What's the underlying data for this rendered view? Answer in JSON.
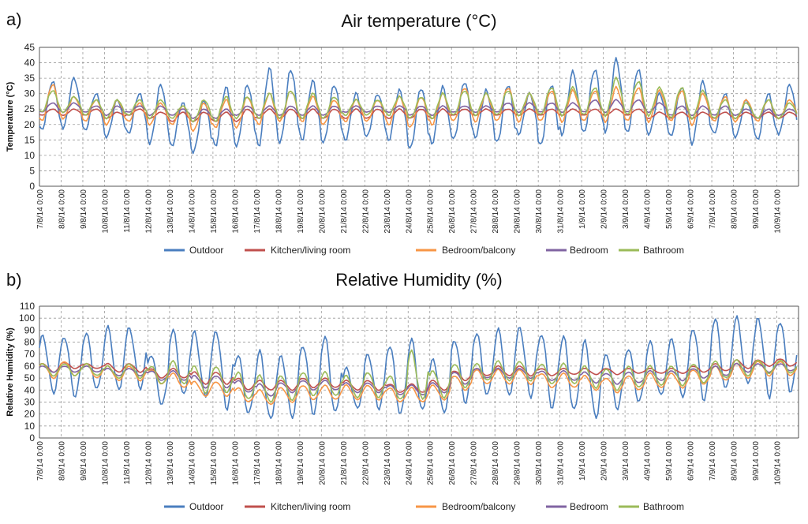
{
  "chart_data": [
    {
      "type": "line",
      "panel_label": "a)",
      "title": "Air temperature (°C)",
      "ylabel": "Temperature (°C)",
      "xlabel": "",
      "ylim": [
        0,
        45
      ],
      "yticks": [
        0,
        5,
        10,
        15,
        20,
        25,
        30,
        35,
        40,
        45
      ],
      "grid": true,
      "legend": "bottom",
      "categories": [
        "7/8/14 0:00",
        "8/8/14 0:00",
        "9/8/14 0:00",
        "10/8/14 0:00",
        "11/8/14 0:00",
        "12/8/14 0:00",
        "13/8/14 0:00",
        "14/8/14 0:00",
        "15/8/14 0:00",
        "16/8/14 0:00",
        "17/8/14 0:00",
        "18/8/14 0:00",
        "19/8/14 0:00",
        "20/8/14 0:00",
        "21/8/14 0:00",
        "22/8/14 0:00",
        "23/8/14 0:00",
        "24/8/14 0:00",
        "25/8/14 0:00",
        "26/8/14 0:00",
        "27/8/14 0:00",
        "28/8/14 0:00",
        "29/8/14 0:00",
        "30/8/14 0:00",
        "31/8/14 0:00",
        "1/9/14 0:00",
        "2/9/14 0:00",
        "3/9/14 0:00",
        "4/9/14 0:00",
        "5/9/14 0:00",
        "6/9/14 0:00",
        "7/9/14 0:00",
        "8/9/14 0:00",
        "9/9/14 0:00",
        "10/9/14 0:00"
      ],
      "series": [
        {
          "name": "Outdoor",
          "color": "#4a7ebf",
          "mins": [
            18,
            19,
            18,
            16,
            17,
            14,
            13,
            11,
            13,
            13,
            13,
            14,
            15,
            14,
            15,
            16,
            15,
            12,
            14,
            15,
            16,
            14,
            17,
            13,
            17,
            17,
            18,
            17,
            17,
            16,
            14,
            17,
            16,
            15,
            17
          ],
          "maxs": [
            34,
            35,
            30,
            28,
            30,
            33,
            27,
            28,
            32,
            33,
            38,
            38,
            34,
            33,
            30,
            30,
            31,
            32,
            32,
            34,
            31,
            33,
            30,
            33,
            37,
            38,
            41,
            38,
            30,
            32,
            34,
            30,
            28,
            30,
            33
          ]
        },
        {
          "name": "Kitchen/living room",
          "color": "#c0504d",
          "mins": [
            23,
            23,
            23,
            22,
            23,
            22,
            21,
            21,
            21,
            21,
            22,
            22,
            22,
            22,
            22,
            22,
            22,
            22,
            22,
            23,
            23,
            23,
            23,
            23,
            23,
            23,
            23,
            23,
            22,
            22,
            22,
            22,
            22,
            22,
            22
          ],
          "maxs": [
            25,
            25,
            25,
            24,
            25,
            24,
            24,
            24,
            24,
            25,
            25,
            25,
            25,
            25,
            25,
            25,
            25,
            25,
            25,
            25,
            25,
            25,
            25,
            25,
            25,
            25,
            25,
            25,
            24,
            24,
            24,
            24,
            24,
            24,
            24
          ]
        },
        {
          "name": "Bedroom/balcony",
          "color": "#f79646",
          "mins": [
            21,
            22,
            21,
            20,
            21,
            20,
            20,
            18,
            19,
            19,
            20,
            21,
            21,
            20,
            21,
            21,
            20,
            19,
            20,
            21,
            21,
            21,
            21,
            21,
            21,
            21,
            21,
            21,
            21,
            21,
            20,
            21,
            21,
            21,
            22
          ],
          "maxs": [
            33,
            29,
            28,
            28,
            27,
            27,
            26,
            27,
            28,
            29,
            30,
            31,
            29,
            28,
            28,
            28,
            29,
            29,
            30,
            32,
            30,
            32,
            30,
            31,
            31,
            31,
            32,
            32,
            31,
            31,
            30,
            29,
            28,
            28,
            28
          ]
        },
        {
          "name": "Bedroom",
          "color": "#8064a2",
          "mins": [
            24,
            24,
            24,
            23,
            24,
            23,
            23,
            22,
            22,
            23,
            23,
            23,
            23,
            23,
            24,
            24,
            24,
            23,
            23,
            24,
            24,
            24,
            24,
            24,
            24,
            24,
            24,
            24,
            24,
            23,
            23,
            23,
            23,
            22,
            23
          ],
          "maxs": [
            27,
            27,
            26,
            26,
            26,
            26,
            25,
            25,
            25,
            26,
            26,
            26,
            26,
            26,
            26,
            26,
            26,
            26,
            26,
            26,
            26,
            27,
            27,
            27,
            27,
            28,
            28,
            28,
            27,
            26,
            26,
            26,
            25,
            25,
            25
          ]
        },
        {
          "name": "Bathroom",
          "color": "#9bbb59",
          "mins": [
            24,
            24,
            23,
            22,
            23,
            22,
            22,
            21,
            21,
            22,
            22,
            22,
            22,
            22,
            23,
            23,
            23,
            22,
            22,
            23,
            23,
            23,
            23,
            23,
            23,
            23,
            23,
            23,
            23,
            22,
            22,
            22,
            22,
            22,
            22
          ],
          "maxs": [
            31,
            29,
            28,
            28,
            28,
            28,
            26,
            28,
            29,
            29,
            30,
            31,
            30,
            29,
            28,
            28,
            29,
            29,
            30,
            31,
            30,
            31,
            30,
            32,
            32,
            32,
            35,
            34,
            32,
            32,
            31,
            28,
            27,
            28,
            27
          ]
        }
      ]
    },
    {
      "type": "line",
      "panel_label": "b)",
      "title": "Relative Humidity (%)",
      "ylabel": "Relative Humidity (%)",
      "xlabel": "",
      "ylim": [
        0,
        110
      ],
      "yticks": [
        0,
        10,
        20,
        30,
        40,
        50,
        60,
        70,
        80,
        90,
        100,
        110
      ],
      "grid": true,
      "legend": "bottom",
      "categories": [
        "7/8/14 0:00",
        "8/8/14 0:00",
        "9/8/14 0:00",
        "10/8/14 0:00",
        "11/8/14 0:00",
        "12/8/14 0:00",
        "13/8/14 0:00",
        "14/8/14 0:00",
        "15/8/14 0:00",
        "16/8/14 0:00",
        "17/8/14 0:00",
        "18/8/14 0:00",
        "19/8/14 0:00",
        "20/8/14 0:00",
        "21/8/14 0:00",
        "22/8/14 0:00",
        "23/8/14 0:00",
        "24/8/14 0:00",
        "25/8/14 0:00",
        "26/8/14 0:00",
        "27/8/14 0:00",
        "28/8/14 0:00",
        "29/8/14 0:00",
        "30/8/14 0:00",
        "31/8/14 0:00",
        "1/9/14 0:00",
        "2/9/14 0:00",
        "3/9/14 0:00",
        "4/9/14 0:00",
        "5/9/14 0:00",
        "6/9/14 0:00",
        "7/9/14 0:00",
        "8/9/14 0:00",
        "9/9/14 0:00",
        "10/9/14 0:00"
      ],
      "series": [
        {
          "name": "Outdoor",
          "color": "#4a7ebf",
          "mins": [
            38,
            35,
            40,
            40,
            42,
            28,
            35,
            35,
            25,
            20,
            15,
            18,
            20,
            20,
            25,
            25,
            20,
            22,
            22,
            30,
            35,
            35,
            35,
            25,
            22,
            17,
            25,
            30,
            35,
            35,
            32,
            40,
            45,
            35,
            38
          ],
          "maxs": [
            85,
            85,
            88,
            92,
            92,
            70,
            90,
            88,
            90,
            70,
            72,
            68,
            78,
            85,
            58,
            70,
            78,
            82,
            65,
            82,
            88,
            90,
            92,
            88,
            85,
            80,
            70,
            75,
            80,
            82,
            92,
            100,
            100,
            100,
            98
          ]
        },
        {
          "name": "Kitchen/living room",
          "color": "#c0504d",
          "mins": [
            55,
            58,
            58,
            55,
            55,
            50,
            50,
            45,
            45,
            40,
            40,
            40,
            42,
            42,
            40,
            40,
            38,
            38,
            40,
            48,
            52,
            52,
            52,
            52,
            53,
            53,
            53,
            54,
            54,
            54,
            55,
            56,
            58,
            60,
            60
          ],
          "maxs": [
            62,
            63,
            62,
            62,
            62,
            58,
            58,
            55,
            55,
            50,
            48,
            48,
            50,
            50,
            48,
            48,
            45,
            45,
            48,
            56,
            58,
            60,
            60,
            58,
            58,
            58,
            58,
            58,
            58,
            58,
            60,
            62,
            65,
            65,
            66
          ]
        },
        {
          "name": "Bedroom/balcony",
          "color": "#f79646",
          "mins": [
            50,
            52,
            50,
            48,
            48,
            45,
            42,
            35,
            35,
            30,
            28,
            30,
            32,
            32,
            32,
            32,
            30,
            30,
            32,
            40,
            45,
            45,
            45,
            42,
            42,
            40,
            38,
            40,
            42,
            42,
            45,
            48,
            50,
            52,
            52
          ]
        },
        {
          "name": "Bedroom",
          "color": "#8064a2",
          "mins": [
            55,
            55,
            55,
            52,
            52,
            48,
            48,
            42,
            42,
            38,
            35,
            38,
            40,
            40,
            38,
            38,
            36,
            36,
            38,
            45,
            50,
            50,
            50,
            48,
            48,
            46,
            45,
            46,
            48,
            48,
            50,
            52,
            55,
            55,
            56
          ],
          "maxs": [
            60,
            60,
            60,
            58,
            58,
            56,
            56,
            52,
            52,
            48,
            45,
            46,
            48,
            48,
            46,
            46,
            44,
            44,
            46,
            55,
            58,
            58,
            58,
            56,
            56,
            55,
            54,
            55,
            56,
            56,
            58,
            60,
            62,
            62,
            62
          ]
        },
        {
          "name": "Bathroom",
          "color": "#9bbb59",
          "mins": [
            52,
            52,
            52,
            50,
            50,
            45,
            45,
            38,
            38,
            32,
            30,
            32,
            35,
            35,
            34,
            34,
            32,
            32,
            34,
            42,
            48,
            48,
            48,
            45,
            45,
            42,
            40,
            42,
            44,
            44,
            46,
            50,
            52,
            54,
            54
          ],
          "maxs": [
            62,
            62,
            62,
            60,
            62,
            60,
            64,
            60,
            60,
            55,
            52,
            52,
            55,
            55,
            52,
            55,
            52,
            72,
            56,
            62,
            62,
            64,
            64,
            62,
            62,
            60,
            58,
            60,
            60,
            60,
            62,
            64,
            65,
            65,
            65
          ]
        }
      ]
    }
  ]
}
